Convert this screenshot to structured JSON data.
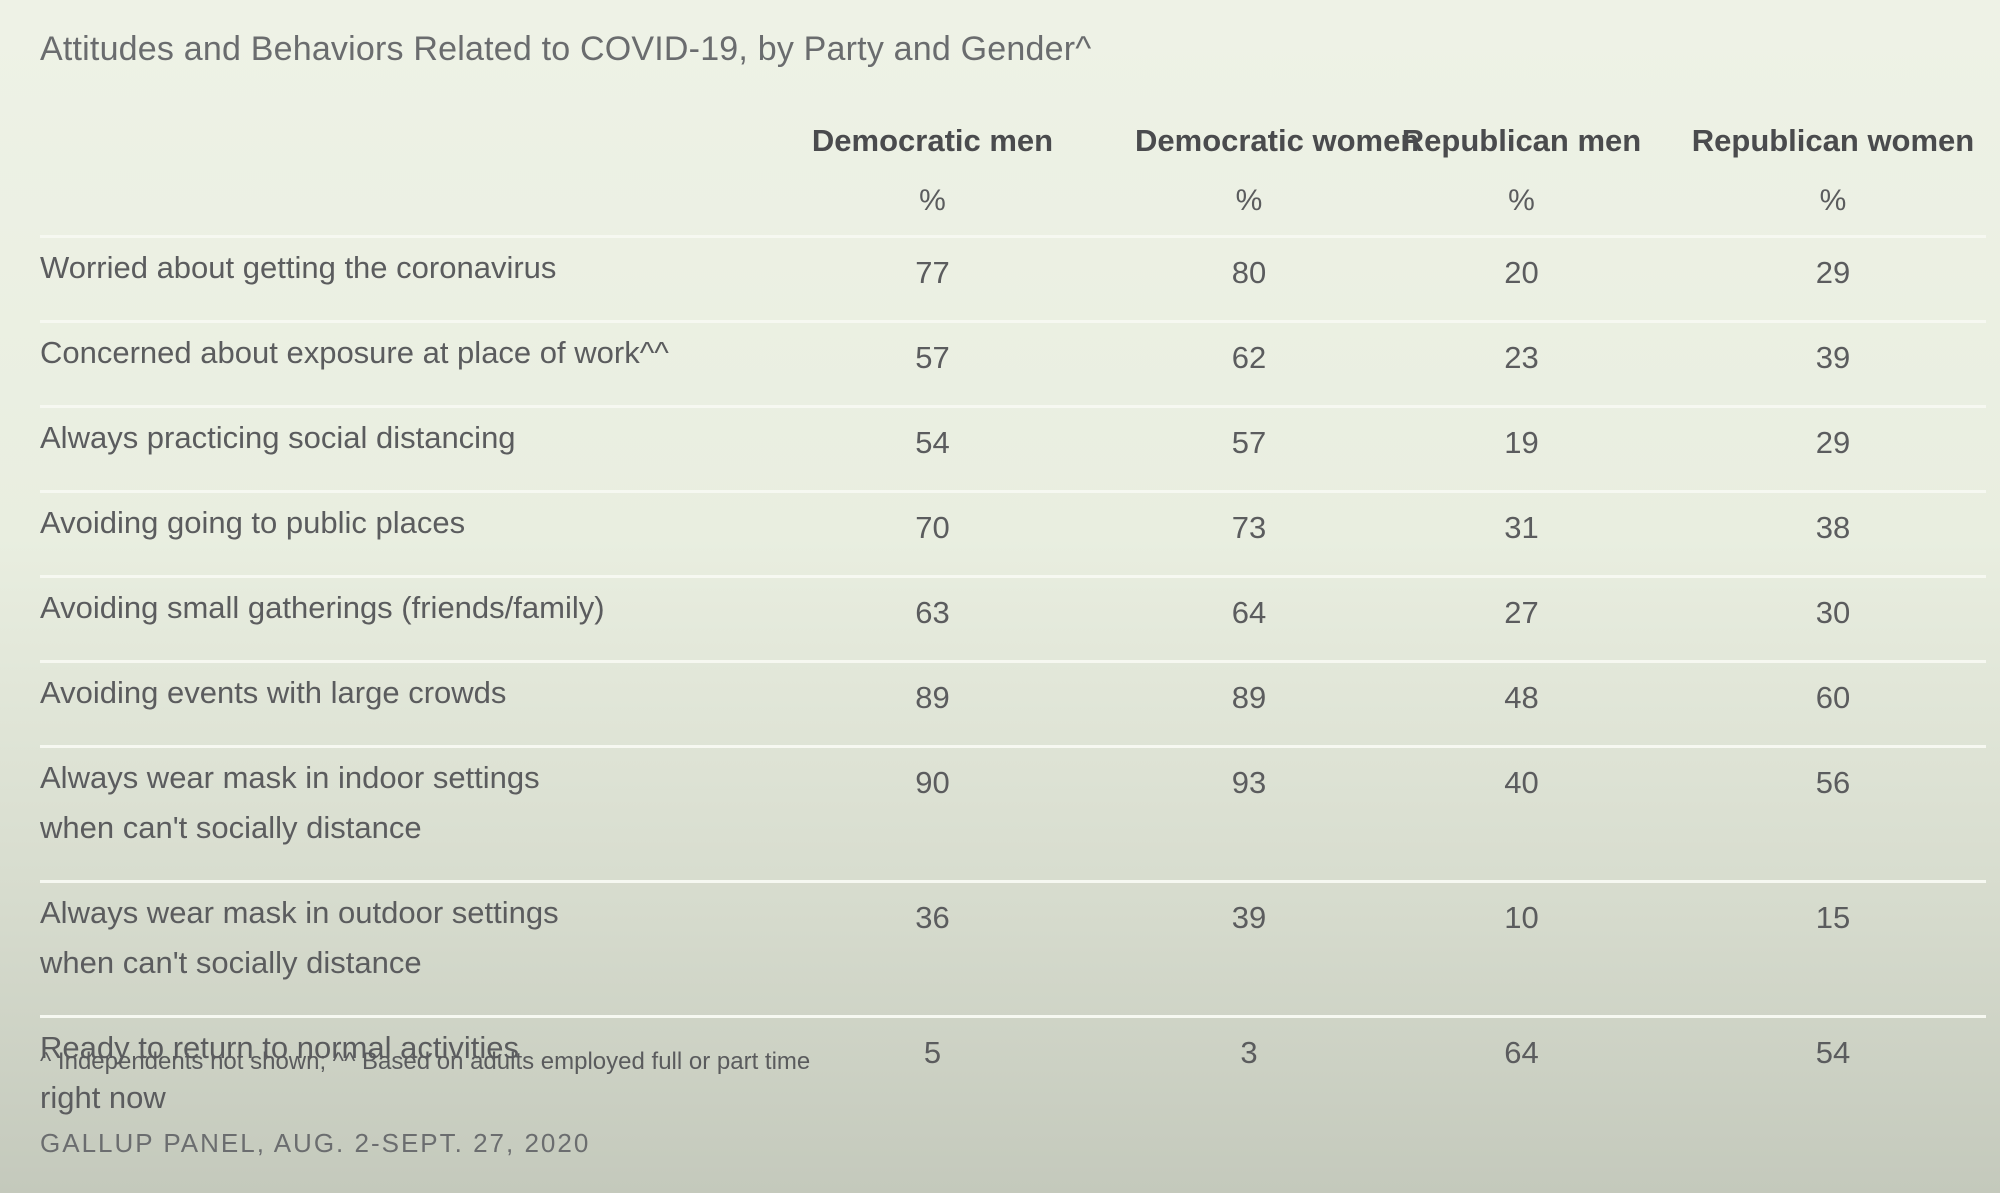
{
  "title": "Attitudes and Behaviors Related to COVID-19, by Party and Gender^",
  "chart_data": {
    "type": "table",
    "columns": [
      "Democratic men",
      "Democratic women",
      "Republican men",
      "Republican women"
    ],
    "units": [
      "%",
      "%",
      "%",
      "%"
    ],
    "rows": [
      {
        "label": [
          "Worried about getting the coronavirus"
        ],
        "values": [
          "77",
          "80",
          "20",
          "29"
        ]
      },
      {
        "label": [
          "Concerned about exposure at place of work^^"
        ],
        "values": [
          "57",
          "62",
          "23",
          "39"
        ]
      },
      {
        "label": [
          "Always practicing social distancing"
        ],
        "values": [
          "54",
          "57",
          "19",
          "29"
        ]
      },
      {
        "label": [
          "Avoiding going to public places"
        ],
        "values": [
          "70",
          "73",
          "31",
          "38"
        ]
      },
      {
        "label": [
          "Avoiding small gatherings (friends/family)"
        ],
        "values": [
          "63",
          "64",
          "27",
          "30"
        ]
      },
      {
        "label": [
          "Avoiding events with large crowds"
        ],
        "values": [
          "89",
          "89",
          "48",
          "60"
        ]
      },
      {
        "label": [
          "Always wear mask in indoor settings",
          "when can't socially distance"
        ],
        "values": [
          "90",
          "93",
          "40",
          "56"
        ]
      },
      {
        "label": [
          "Always wear mask in outdoor settings",
          "when can't socially distance"
        ],
        "values": [
          "36",
          "39",
          "10",
          "15"
        ]
      },
      {
        "label": [
          "Ready to return to normal activities",
          "right now"
        ],
        "values": [
          "5",
          "3",
          "64",
          "54"
        ]
      }
    ]
  },
  "footnote": "^ Independents not shown; ^^ Based on adults employed full or part time",
  "source": "GALLUP PANEL, AUG. 2-SEPT. 27, 2020"
}
